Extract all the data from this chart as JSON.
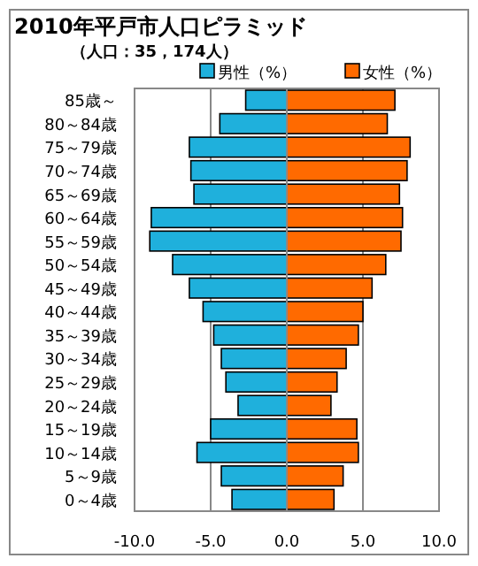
{
  "chart_data": {
    "type": "bar",
    "orientation": "horizontal",
    "stacked": true,
    "title": "2010年平戸市人口ピラミッド",
    "subtitle": "（人口：35，174人）",
    "categories": [
      "85歳～",
      "80～84歳",
      "75～79歳",
      "70～74歳",
      "65～69歳",
      "60～64歳",
      "55～59歳",
      "50～54歳",
      "45～49歳",
      "40～44歳",
      "35～39歳",
      "30～34歳",
      "25～29歳",
      "20～24歳",
      "15～19歳",
      "10～14歳",
      "5～9歳",
      "0～4歳"
    ],
    "series": [
      {
        "name": "男性（%）",
        "color": "#1fb0dc",
        "values": [
          -2.7,
          -4.4,
          -6.4,
          -6.3,
          -6.1,
          -8.9,
          -9.0,
          -7.5,
          -6.4,
          -5.5,
          -4.8,
          -4.3,
          -4.0,
          -3.2,
          -5.0,
          -5.9,
          -4.3,
          -3.6
        ]
      },
      {
        "name": "女性（%）",
        "color": "#ff6a00",
        "values": [
          7.1,
          6.6,
          8.1,
          7.9,
          7.4,
          7.6,
          7.5,
          6.5,
          5.6,
          5.0,
          4.7,
          3.9,
          3.3,
          2.9,
          4.6,
          4.7,
          3.7,
          3.1
        ]
      }
    ],
    "xlim": [
      -10,
      10
    ],
    "xticks": [
      {
        "value": -10,
        "label": "-10.0"
      },
      {
        "value": -5,
        "label": "-5.0"
      },
      {
        "value": 0,
        "label": "0.0"
      },
      {
        "value": 5,
        "label": "5.0"
      },
      {
        "value": 10,
        "label": "10.0"
      }
    ],
    "grid": "x",
    "legend": "top right"
  }
}
